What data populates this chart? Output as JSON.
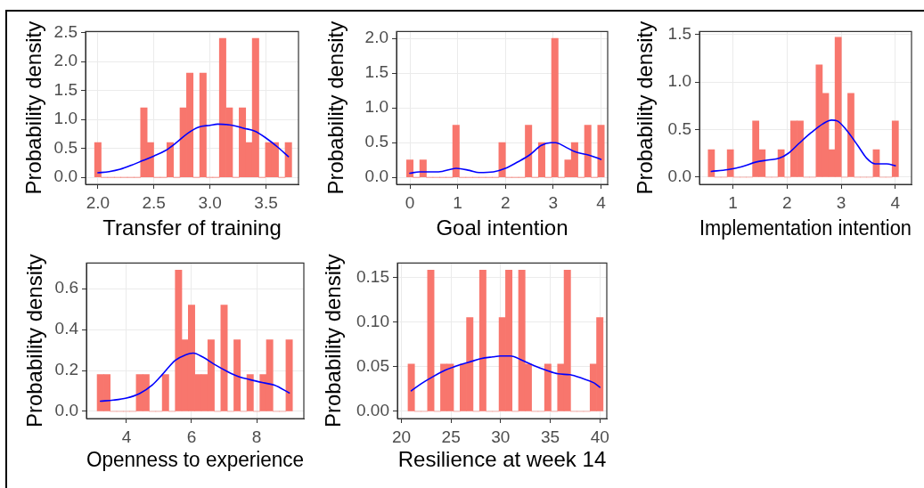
{
  "chart_data": [
    {
      "type": "histogram",
      "xlabel": "Transfer of training",
      "ylabel": "Probability density",
      "bins": [
        1.971,
        2.029,
        2.088,
        2.147,
        2.205,
        2.264,
        2.322,
        2.381,
        2.44,
        2.498,
        2.557,
        2.616,
        2.674,
        2.733,
        2.791,
        2.85,
        2.909,
        2.967,
        3.026,
        3.084,
        3.143,
        3.202,
        3.26,
        3.319,
        3.378,
        3.436,
        3.495,
        3.553,
        3.612,
        3.671,
        3.729
      ],
      "series": [
        {
          "color": "#f8766d",
          "values": [
            0.6,
            0,
            0,
            0,
            0,
            0,
            0,
            1.2,
            0.6,
            0,
            0,
            0.6,
            0,
            1.2,
            1.8,
            0,
            1.8,
            0,
            0,
            2.4,
            1.2,
            0,
            1.2,
            0.6,
            2.4,
            0,
            0.6,
            0.6,
            0,
            0.6
          ]
        },
        {
          "type": "line",
          "color": "#0000ff",
          "x": [
            2.0,
            2.1,
            2.2,
            2.3,
            2.4,
            2.5,
            2.6,
            2.7,
            2.8,
            2.9,
            3.0,
            3.07,
            3.2,
            3.3,
            3.4,
            3.5,
            3.6,
            3.7
          ],
          "values": [
            0.08,
            0.1,
            0.14,
            0.21,
            0.29,
            0.37,
            0.46,
            0.6,
            0.76,
            0.87,
            0.9,
            0.92,
            0.9,
            0.85,
            0.8,
            0.68,
            0.53,
            0.36
          ]
        }
      ],
      "xlim": [
        1.89,
        3.79
      ],
      "ylim": [
        -0.12,
        2.52
      ],
      "xticks": [
        {
          "value": 2,
          "label": "2.0"
        },
        2.5,
        {
          "value": 3,
          "label": "3.0"
        },
        3.5
      ],
      "yticks": [
        {
          "value": 0,
          "label": "0.0"
        },
        0.5,
        {
          "value": 1,
          "label": "1.0"
        },
        1.5,
        {
          "value": 2,
          "label": "2.0"
        },
        2.5
      ],
      "grid": true,
      "marker": "none",
      "line_style": "solid"
    },
    {
      "type": "histogram",
      "xlabel": "Goal intention",
      "ylabel": "Probability density",
      "bins": [
        -0.069,
        0.069,
        0.207,
        0.345,
        0.483,
        0.621,
        0.759,
        0.897,
        1.034,
        1.172,
        1.31,
        1.448,
        1.586,
        1.724,
        1.862,
        2.0,
        2.138,
        2.276,
        2.414,
        2.552,
        2.69,
        2.828,
        2.966,
        3.103,
        3.241,
        3.379,
        3.517,
        3.655,
        3.793,
        3.931,
        4.069
      ],
      "series": [
        {
          "color": "#f8766d",
          "values": [
            0.25,
            0,
            0.25,
            0,
            0,
            0,
            0,
            0.75,
            0,
            0,
            0,
            0,
            0,
            0,
            0.5,
            0,
            0,
            0,
            0.75,
            0,
            0.5,
            0,
            2,
            0,
            0.25,
            0.5,
            0,
            0.75,
            0,
            0.75
          ]
        },
        {
          "type": "line",
          "color": "#0000ff",
          "x": [
            0,
            0.2,
            0.6,
            0.97,
            1.25,
            1.45,
            1.75,
            2.0,
            2.25,
            2.5,
            2.75,
            2.95,
            3.05,
            3.25,
            3.45,
            3.75,
            4.0
          ],
          "values": [
            0.06,
            0.08,
            0.08,
            0.13,
            0.1,
            0.07,
            0.08,
            0.13,
            0.22,
            0.32,
            0.46,
            0.5,
            0.5,
            0.44,
            0.37,
            0.32,
            0.26
          ]
        }
      ],
      "xlim": [
        -0.28,
        4.14
      ],
      "ylim": [
        -0.1,
        2.1
      ],
      "xticks": [
        0,
        1,
        2,
        3,
        4
      ],
      "yticks": [
        {
          "value": 0,
          "label": "0.0"
        },
        0.5,
        {
          "value": 1,
          "label": "1.0"
        },
        1.5,
        {
          "value": 2,
          "label": "2.0"
        }
      ],
      "grid": true,
      "marker": "none",
      "line_style": "solid"
    },
    {
      "type": "histogram",
      "xlabel": "Implementation intention",
      "ylabel": "Probability density",
      "bins": [
        0.541,
        0.659,
        0.776,
        0.893,
        1.01,
        1.128,
        1.245,
        1.362,
        1.479,
        1.597,
        1.714,
        1.831,
        1.948,
        2.066,
        2.183,
        2.3,
        2.417,
        2.534,
        2.652,
        2.769,
        2.886,
        3.003,
        3.121,
        3.238,
        3.355,
        3.472,
        3.59,
        3.707,
        3.824,
        3.941,
        4.059
      ],
      "series": [
        {
          "color": "#f8766d",
          "values": [
            0.29,
            0,
            0,
            0.29,
            0,
            0,
            0,
            0.59,
            0.29,
            0,
            0,
            0.29,
            0,
            0.59,
            0.59,
            0,
            0,
            1.18,
            0.88,
            0.29,
            1.47,
            0,
            0.88,
            0,
            0,
            0,
            0.29,
            0,
            0,
            0.59
          ]
        },
        {
          "type": "line",
          "color": "#0000ff",
          "x": [
            0.6,
            0.9,
            1.16,
            1.43,
            1.64,
            1.86,
            2.02,
            2.23,
            2.45,
            2.66,
            2.82,
            2.93,
            3.09,
            3.31,
            3.47,
            3.63,
            3.84,
            4.0
          ],
          "values": [
            0.06,
            0.08,
            0.11,
            0.16,
            0.18,
            0.2,
            0.25,
            0.36,
            0.47,
            0.56,
            0.6,
            0.59,
            0.5,
            0.33,
            0.2,
            0.14,
            0.14,
            0.12
          ]
        }
      ],
      "xlim": [
        0.38,
        4.3
      ],
      "ylim": [
        -0.075,
        1.53
      ],
      "xticks": [
        1,
        2,
        3,
        4
      ],
      "yticks": [
        {
          "value": 0,
          "label": "0.0"
        },
        0.5,
        {
          "value": 1,
          "label": "1.0"
        },
        1.5
      ],
      "grid": true,
      "marker": "none",
      "line_style": "solid"
    },
    {
      "type": "histogram",
      "xlabel": "Openness to experience",
      "ylabel": "Probability density",
      "bins": [
        3.1,
        3.3,
        3.5,
        3.7,
        3.9,
        4.1,
        4.3,
        4.5,
        4.7,
        4.9,
        5.1,
        5.3,
        5.5,
        5.7,
        5.9,
        6.1,
        6.3,
        6.5,
        6.7,
        6.9,
        7.1,
        7.3,
        7.5,
        7.7,
        7.9,
        8.1,
        8.3,
        8.5,
        8.7,
        8.9,
        9.1
      ],
      "series": [
        {
          "color": "#f8766d",
          "values": [
            0.18,
            0.18,
            0,
            0,
            0,
            0,
            0.18,
            0.18,
            0,
            0,
            0.18,
            0,
            0.69,
            0.35,
            0.52,
            0.18,
            0.18,
            0.35,
            0,
            0.52,
            0,
            0.35,
            0,
            0.18,
            0,
            0.18,
            0.35,
            0,
            0,
            0.35
          ]
        },
        {
          "type": "line",
          "color": "#0000ff",
          "x": [
            3.2,
            3.6,
            4.0,
            4.4,
            4.8,
            5.1,
            5.5,
            5.8,
            6.05,
            6.35,
            6.7,
            7.1,
            7.45,
            7.8,
            8.2,
            8.55,
            9.0
          ],
          "values": [
            0.05,
            0.055,
            0.065,
            0.087,
            0.13,
            0.18,
            0.25,
            0.275,
            0.285,
            0.265,
            0.23,
            0.195,
            0.17,
            0.155,
            0.14,
            0.128,
            0.09
          ]
        }
      ],
      "xlim": [
        2.77,
        9.45
      ],
      "ylim": [
        -0.035,
        0.725
      ],
      "xticks": [
        4,
        6,
        8
      ],
      "yticks": [
        {
          "value": 0,
          "label": "0.0"
        },
        0.2,
        0.4,
        0.6
      ],
      "grid": true,
      "marker": "none",
      "line_style": "solid"
    },
    {
      "type": "histogram",
      "xlabel": "Resilience at week 14",
      "ylabel": "Probability density",
      "bins": [
        20.672,
        21.328,
        21.983,
        22.638,
        23.293,
        23.948,
        24.603,
        25.259,
        25.914,
        26.569,
        27.224,
        27.879,
        28.534,
        29.19,
        29.845,
        30.5,
        31.155,
        31.81,
        32.466,
        33.121,
        33.776,
        34.431,
        35.086,
        35.741,
        36.397,
        37.052,
        37.707,
        38.362,
        39.017,
        39.672,
        40.328
      ],
      "series": [
        {
          "color": "#f8766d",
          "values": [
            0.053,
            0,
            0,
            0.158,
            0,
            0.053,
            0.053,
            0,
            0.053,
            0.105,
            0,
            0.158,
            0,
            0,
            0.105,
            0.158,
            0,
            0.158,
            0.053,
            0,
            0,
            0.053,
            0,
            0.053,
            0.158,
            0,
            0,
            0,
            0.053,
            0.105
          ]
        },
        {
          "type": "line",
          "color": "#0000ff",
          "x": [
            21,
            22,
            23.2,
            24.4,
            25.6,
            26.8,
            28,
            29.2,
            30,
            31,
            32.2,
            33.4,
            34.6,
            35.8,
            37,
            38.2,
            39.4,
            40
          ],
          "values": [
            0.023,
            0.031,
            0.039,
            0.046,
            0.051,
            0.055,
            0.059,
            0.061,
            0.062,
            0.062,
            0.057,
            0.051,
            0.046,
            0.042,
            0.041,
            0.037,
            0.032,
            0.027
          ]
        }
      ],
      "xlim": [
        19.6,
        40.7
      ],
      "ylim": [
        -0.008,
        0.166
      ],
      "xticks": [
        20,
        25,
        30,
        35,
        40
      ],
      "yticks": [
        {
          "value": 0,
          "label": "0.00"
        },
        0.05,
        {
          "value": 0.1,
          "label": "0.10"
        },
        0.15
      ],
      "grid": true,
      "marker": "none",
      "line_style": "solid"
    }
  ]
}
